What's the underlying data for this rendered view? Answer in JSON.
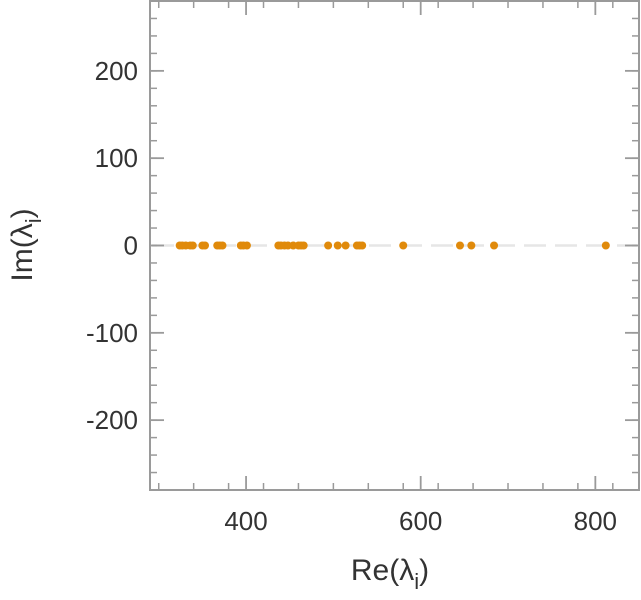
{
  "chart_data": {
    "type": "scatter",
    "xlabel": "Re(λ",
    "xlabel_sub": "i",
    "xlabel_close": ")",
    "ylabel": "Im(λ",
    "ylabel_sub": "i",
    "ylabel_close": ")",
    "xlim": [
      290,
      850
    ],
    "ylim": [
      -280,
      280
    ],
    "xticks": [
      400,
      600,
      800
    ],
    "yticks": [
      200,
      100,
      0,
      -100,
      -200
    ],
    "xtick_labels": [
      "400",
      "600",
      "800"
    ],
    "ytick_labels": [
      "200",
      "100",
      "0",
      "-100",
      "-200"
    ],
    "zero_line": true,
    "grid": false,
    "marker_color": "#e08a0b",
    "zero_line_color": "#e6e6e6",
    "series": [
      {
        "points": [
          {
            "x": 324,
            "y": 0
          },
          {
            "x": 327,
            "y": 0
          },
          {
            "x": 331,
            "y": 0
          },
          {
            "x": 336,
            "y": 0
          },
          {
            "x": 339,
            "y": 0
          },
          {
            "x": 350,
            "y": 0
          },
          {
            "x": 353,
            "y": 0
          },
          {
            "x": 367,
            "y": 0
          },
          {
            "x": 370,
            "y": 0
          },
          {
            "x": 373,
            "y": 0
          },
          {
            "x": 394,
            "y": 0
          },
          {
            "x": 397,
            "y": 0
          },
          {
            "x": 401,
            "y": 0
          },
          {
            "x": 437,
            "y": 0
          },
          {
            "x": 440,
            "y": 0
          },
          {
            "x": 444,
            "y": 0
          },
          {
            "x": 448,
            "y": 0
          },
          {
            "x": 454,
            "y": 0
          },
          {
            "x": 460,
            "y": 0
          },
          {
            "x": 463,
            "y": 0
          },
          {
            "x": 466,
            "y": 0
          },
          {
            "x": 494,
            "y": 0
          },
          {
            "x": 505,
            "y": 0
          },
          {
            "x": 514,
            "y": 0
          },
          {
            "x": 527,
            "y": 0
          },
          {
            "x": 530,
            "y": 0
          },
          {
            "x": 533,
            "y": 0
          },
          {
            "x": 580,
            "y": 0
          },
          {
            "x": 645,
            "y": 0
          },
          {
            "x": 658,
            "y": 0
          },
          {
            "x": 684,
            "y": 0
          },
          {
            "x": 812,
            "y": 0
          }
        ]
      }
    ]
  }
}
